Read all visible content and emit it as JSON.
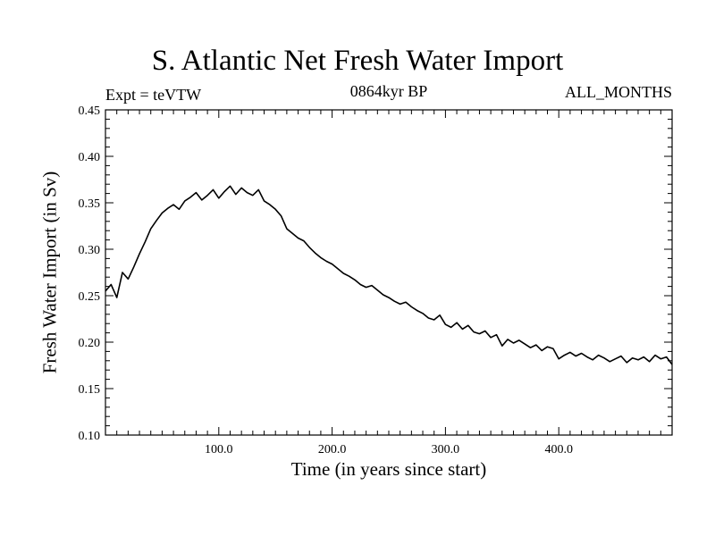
{
  "chart_data": {
    "type": "line",
    "title": "S. Atlantic Net Fresh Water Import",
    "subtitle": "0864kyr BP",
    "experiment_label": "Expt = teVTW",
    "period_label": "ALL_MONTHS",
    "xlabel": "Time (in years since start)",
    "ylabel": "Fresh Water Import (in Sv)",
    "xlim": [
      0,
      500
    ],
    "ylim": [
      0.1,
      0.45
    ],
    "xticks": [
      {
        "value": 100,
        "label": "100.0"
      },
      {
        "value": 200,
        "label": "200.0"
      },
      {
        "value": 300,
        "label": "300.0"
      },
      {
        "value": 400,
        "label": "400.0"
      }
    ],
    "yticks": [
      {
        "value": 0.1,
        "label": "0.10"
      },
      {
        "value": 0.15,
        "label": "0.15"
      },
      {
        "value": 0.2,
        "label": "0.20"
      },
      {
        "value": 0.25,
        "label": "0.25"
      },
      {
        "value": 0.3,
        "label": "0.30"
      },
      {
        "value": 0.35,
        "label": "0.35"
      },
      {
        "value": 0.4,
        "label": "0.40"
      },
      {
        "value": 0.45,
        "label": "0.45"
      }
    ],
    "series": [
      {
        "name": "fresh_water_import",
        "x": [
          0,
          5,
          10,
          15,
          20,
          25,
          30,
          35,
          40,
          45,
          50,
          55,
          60,
          65,
          70,
          75,
          80,
          85,
          90,
          95,
          100,
          105,
          110,
          115,
          120,
          125,
          130,
          135,
          140,
          145,
          150,
          155,
          160,
          165,
          170,
          175,
          180,
          185,
          190,
          195,
          200,
          205,
          210,
          215,
          220,
          225,
          230,
          235,
          240,
          245,
          250,
          255,
          260,
          265,
          270,
          275,
          280,
          285,
          290,
          295,
          300,
          305,
          310,
          315,
          320,
          325,
          330,
          335,
          340,
          345,
          350,
          355,
          360,
          365,
          370,
          375,
          380,
          385,
          390,
          395,
          400,
          405,
          410,
          415,
          420,
          425,
          430,
          435,
          440,
          445,
          450,
          455,
          460,
          465,
          470,
          475,
          480,
          485,
          490,
          495,
          500
        ],
        "values": [
          0.255,
          0.262,
          0.248,
          0.275,
          0.268,
          0.281,
          0.295,
          0.308,
          0.322,
          0.331,
          0.339,
          0.344,
          0.348,
          0.343,
          0.352,
          0.356,
          0.361,
          0.353,
          0.358,
          0.364,
          0.355,
          0.362,
          0.368,
          0.359,
          0.366,
          0.361,
          0.358,
          0.364,
          0.352,
          0.348,
          0.343,
          0.336,
          0.322,
          0.317,
          0.312,
          0.309,
          0.302,
          0.296,
          0.291,
          0.287,
          0.284,
          0.279,
          0.274,
          0.271,
          0.267,
          0.262,
          0.259,
          0.261,
          0.256,
          0.251,
          0.248,
          0.244,
          0.241,
          0.243,
          0.238,
          0.234,
          0.231,
          0.226,
          0.224,
          0.229,
          0.219,
          0.216,
          0.221,
          0.214,
          0.218,
          0.211,
          0.209,
          0.212,
          0.205,
          0.208,
          0.196,
          0.203,
          0.199,
          0.202,
          0.198,
          0.194,
          0.197,
          0.191,
          0.195,
          0.193,
          0.182,
          0.186,
          0.189,
          0.185,
          0.188,
          0.184,
          0.181,
          0.186,
          0.183,
          0.179,
          0.182,
          0.185,
          0.178,
          0.183,
          0.181,
          0.184,
          0.179,
          0.186,
          0.182,
          0.184,
          0.176
        ]
      }
    ]
  }
}
